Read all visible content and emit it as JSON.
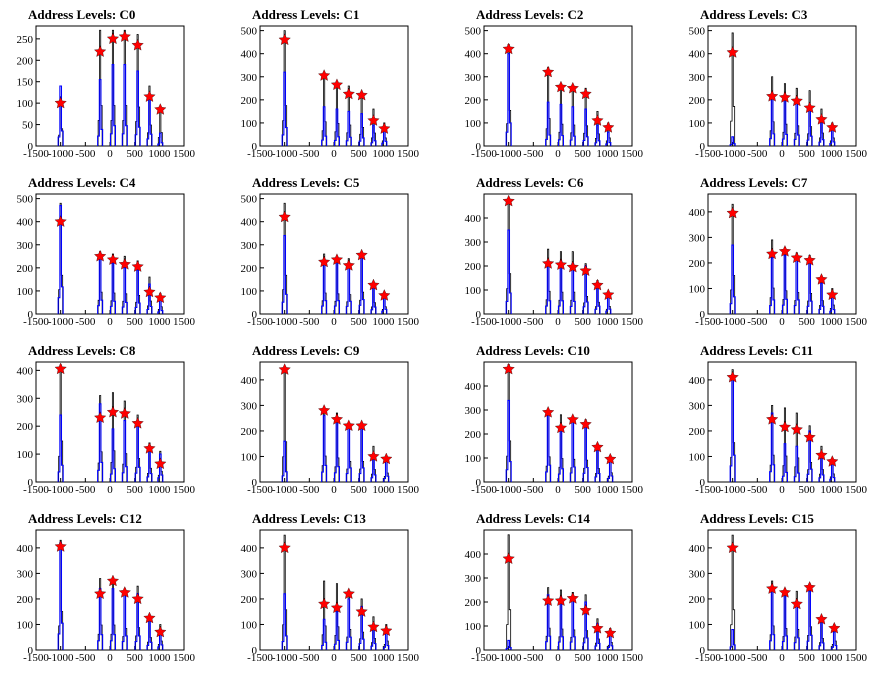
{
  "chart_data": [
    {
      "title": "Address Levels: C0",
      "type": "bar",
      "xlim": [
        -1500,
        1500
      ],
      "ylim": [
        0,
        280
      ],
      "xticks": [
        -1500,
        -1000,
        -500,
        0,
        500,
        1000,
        1500
      ],
      "xtick_labels": [
        "-1500",
        "-1000",
        "-500",
        "0",
        "500",
        "1000",
        "1500"
      ],
      "yticks": [
        0,
        50,
        100,
        150,
        200,
        250
      ],
      "ytick_labels": [
        "0",
        "50",
        "100",
        "150",
        "200",
        "250"
      ],
      "levels": [
        -1000,
        -200,
        60,
        300,
        560,
        800,
        1020
      ],
      "black_peaks": [
        115,
        270,
        270,
        270,
        260,
        140,
        90
      ],
      "blue_peaks": [
        140,
        155,
        190,
        190,
        175,
        110,
        30
      ],
      "star_values": [
        100,
        220,
        250,
        255,
        235,
        115,
        85
      ]
    },
    {
      "title": "Address Levels: C1",
      "type": "bar",
      "xlim": [
        -1500,
        1500
      ],
      "ylim": [
        0,
        520
      ],
      "xticks": [
        -1500,
        -1000,
        -500,
        0,
        500,
        1000,
        1500
      ],
      "xtick_labels": [
        "-1500",
        "-1000",
        "-500",
        "0",
        "500",
        "1000",
        "1500"
      ],
      "yticks": [
        0,
        100,
        200,
        300,
        400,
        500
      ],
      "ytick_labels": [
        "0",
        "100",
        "200",
        "300",
        "400",
        "500"
      ],
      "levels": [
        -1000,
        -200,
        60,
        300,
        560,
        800,
        1020
      ],
      "black_peaks": [
        500,
        300,
        280,
        260,
        230,
        160,
        100
      ],
      "blue_peaks": [
        320,
        170,
        160,
        150,
        140,
        90,
        80
      ],
      "star_values": [
        460,
        305,
        265,
        225,
        220,
        110,
        75
      ]
    },
    {
      "title": "Address Levels: C2",
      "type": "bar",
      "xlim": [
        -1500,
        1500
      ],
      "ylim": [
        0,
        520
      ],
      "xticks": [
        -1500,
        -1000,
        -500,
        0,
        500,
        1000,
        1500
      ],
      "xtick_labels": [
        "-1500",
        "-1000",
        "-500",
        "0",
        "500",
        "1000",
        "1500"
      ],
      "yticks": [
        0,
        100,
        200,
        300,
        400,
        500
      ],
      "ytick_labels": [
        "0",
        "100",
        "200",
        "300",
        "400",
        "500"
      ],
      "levels": [
        -1000,
        -200,
        60,
        300,
        560,
        800,
        1020
      ],
      "black_peaks": [
        440,
        340,
        270,
        260,
        250,
        150,
        100
      ],
      "blue_peaks": [
        400,
        190,
        180,
        170,
        160,
        90,
        60
      ],
      "star_values": [
        420,
        320,
        255,
        250,
        225,
        110,
        80
      ]
    },
    {
      "title": "Address Levels: C3",
      "type": "bar",
      "xlim": [
        -1500,
        1500
      ],
      "ylim": [
        0,
        520
      ],
      "xticks": [
        -1500,
        -1000,
        -500,
        0,
        500,
        1000,
        1500
      ],
      "xtick_labels": [
        "-1500",
        "-1000",
        "-500",
        "0",
        "500",
        "1000",
        "1500"
      ],
      "yticks": [
        0,
        100,
        200,
        300,
        400,
        500
      ],
      "ytick_labels": [
        "0",
        "100",
        "200",
        "300",
        "400",
        "500"
      ],
      "levels": [
        -1000,
        -200,
        60,
        300,
        560,
        800,
        1020
      ],
      "black_peaks": [
        490,
        300,
        270,
        250,
        240,
        160,
        100
      ],
      "blue_peaks": [
        40,
        210,
        200,
        190,
        170,
        110,
        70
      ],
      "star_values": [
        405,
        215,
        210,
        195,
        165,
        115,
        80
      ]
    },
    {
      "title": "Address Levels: C4",
      "type": "bar",
      "xlim": [
        -1500,
        1500
      ],
      "ylim": [
        0,
        520
      ],
      "xticks": [
        -1500,
        -1000,
        -500,
        0,
        500,
        1000,
        1500
      ],
      "xtick_labels": [
        "-1500",
        "-1000",
        "-500",
        "0",
        "500",
        "1000",
        "1500"
      ],
      "yticks": [
        0,
        100,
        200,
        300,
        400,
        500
      ],
      "ytick_labels": [
        "0",
        "100",
        "200",
        "300",
        "400",
        "500"
      ],
      "levels": [
        -1000,
        -200,
        60,
        300,
        560,
        800,
        1020
      ],
      "black_peaks": [
        480,
        270,
        260,
        250,
        230,
        160,
        90
      ],
      "blue_peaks": [
        470,
        240,
        220,
        200,
        190,
        130,
        60
      ],
      "star_values": [
        400,
        250,
        235,
        215,
        205,
        95,
        70
      ]
    },
    {
      "title": "Address Levels: C5",
      "type": "bar",
      "xlim": [
        -1500,
        1500
      ],
      "ylim": [
        0,
        520
      ],
      "xticks": [
        -1500,
        -1000,
        -500,
        0,
        500,
        1000,
        1500
      ],
      "xtick_labels": [
        "-1500",
        "-1000",
        "-500",
        "0",
        "500",
        "1000",
        "1500"
      ],
      "yticks": [
        0,
        100,
        200,
        300,
        400,
        500
      ],
      "ytick_labels": [
        "0",
        "100",
        "200",
        "300",
        "400",
        "500"
      ],
      "levels": [
        -1000,
        -200,
        60,
        300,
        560,
        800,
        1020
      ],
      "black_peaks": [
        480,
        260,
        250,
        240,
        270,
        140,
        90
      ],
      "blue_peaks": [
        340,
        230,
        230,
        220,
        250,
        120,
        80
      ],
      "star_values": [
        420,
        225,
        235,
        210,
        255,
        125,
        80
      ]
    },
    {
      "title": "Address Levels: C6",
      "type": "bar",
      "xlim": [
        -1500,
        1500
      ],
      "ylim": [
        0,
        500
      ],
      "xticks": [
        -1500,
        -1000,
        -500,
        0,
        500,
        1000,
        1500
      ],
      "xtick_labels": [
        "-1500",
        "-1000",
        "-500",
        "0",
        "500",
        "1000",
        "1500"
      ],
      "yticks": [
        0,
        100,
        200,
        300,
        400
      ],
      "ytick_labels": [
        "0",
        "100",
        "200",
        "300",
        "400"
      ],
      "levels": [
        -1000,
        -200,
        60,
        300,
        560,
        800,
        1020
      ],
      "black_peaks": [
        480,
        270,
        260,
        260,
        210,
        140,
        90
      ],
      "blue_peaks": [
        350,
        220,
        220,
        210,
        200,
        130,
        80
      ],
      "star_values": [
        470,
        210,
        205,
        195,
        180,
        120,
        80
      ]
    },
    {
      "title": "Address Levels: C7",
      "type": "bar",
      "xlim": [
        -1500,
        1500
      ],
      "ylim": [
        0,
        470
      ],
      "xticks": [
        -1500,
        -1000,
        -500,
        0,
        500,
        1000,
        1500
      ],
      "xtick_labels": [
        "-1500",
        "-1000",
        "-500",
        "0",
        "500",
        "1000",
        "1500"
      ],
      "yticks": [
        0,
        100,
        200,
        300,
        400
      ],
      "ytick_labels": [
        "0",
        "100",
        "200",
        "300",
        "400"
      ],
      "levels": [
        -1000,
        -200,
        60,
        300,
        560,
        800,
        1020
      ],
      "black_peaks": [
        430,
        290,
        260,
        240,
        230,
        150,
        100
      ],
      "blue_peaks": [
        270,
        220,
        230,
        220,
        200,
        120,
        70
      ],
      "star_values": [
        395,
        235,
        245,
        220,
        210,
        135,
        75
      ]
    },
    {
      "title": "Address Levels: C8",
      "type": "bar",
      "xlim": [
        -1500,
        1500
      ],
      "ylim": [
        0,
        430
      ],
      "xticks": [
        -1500,
        -1000,
        -500,
        0,
        500,
        1000,
        1500
      ],
      "xtick_labels": [
        "-1500",
        "-1000",
        "-500",
        "0",
        "500",
        "1000",
        "1500"
      ],
      "yticks": [
        0,
        100,
        200,
        300,
        400
      ],
      "ytick_labels": [
        "0",
        "100",
        "200",
        "300",
        "400"
      ],
      "levels": [
        -1000,
        -200,
        60,
        300,
        560,
        800,
        1020
      ],
      "black_peaks": [
        420,
        310,
        320,
        290,
        240,
        140,
        110
      ],
      "blue_peaks": [
        240,
        280,
        190,
        220,
        210,
        120,
        100
      ],
      "star_values": [
        405,
        230,
        250,
        245,
        210,
        120,
        65
      ]
    },
    {
      "title": "Address Levels: C9",
      "type": "bar",
      "xlim": [
        -1500,
        1500
      ],
      "ylim": [
        0,
        470
      ],
      "xticks": [
        -1500,
        -1000,
        -500,
        0,
        500,
        1000,
        1500
      ],
      "xtick_labels": [
        "-1500",
        "-1000",
        "-500",
        "0",
        "500",
        "1000",
        "1500"
      ],
      "yticks": [
        0,
        100,
        200,
        300,
        400
      ],
      "ytick_labels": [
        "0",
        "100",
        "200",
        "300",
        "400"
      ],
      "levels": [
        -1000,
        -200,
        60,
        300,
        560,
        800,
        1060
      ],
      "black_peaks": [
        450,
        290,
        270,
        230,
        230,
        140,
        100
      ],
      "blue_peaks": [
        160,
        260,
        240,
        220,
        220,
        110,
        90
      ],
      "star_values": [
        440,
        280,
        245,
        220,
        220,
        100,
        90
      ]
    },
    {
      "title": "Address Levels: C10",
      "type": "bar",
      "xlim": [
        -1500,
        1500
      ],
      "ylim": [
        0,
        500
      ],
      "xticks": [
        -1500,
        -1000,
        -500,
        0,
        500,
        1000,
        1500
      ],
      "xtick_labels": [
        "-1500",
        "-1000",
        "-500",
        "0",
        "500",
        "1000",
        "1500"
      ],
      "yticks": [
        0,
        100,
        200,
        300,
        400
      ],
      "ytick_labels": [
        "0",
        "100",
        "200",
        "300",
        "400"
      ],
      "levels": [
        -1000,
        -200,
        60,
        300,
        560,
        800,
        1060
      ],
      "black_peaks": [
        490,
        300,
        280,
        270,
        260,
        160,
        110
      ],
      "blue_peaks": [
        340,
        280,
        220,
        250,
        240,
        140,
        100
      ],
      "star_values": [
        470,
        290,
        225,
        260,
        240,
        145,
        95
      ]
    },
    {
      "title": "Address Levels: C11",
      "type": "bar",
      "xlim": [
        -1500,
        1500
      ],
      "ylim": [
        0,
        470
      ],
      "xticks": [
        -1500,
        -1000,
        -500,
        0,
        500,
        1000,
        1500
      ],
      "xtick_labels": [
        "-1500",
        "-1000",
        "-500",
        "0",
        "500",
        "1000",
        "1500"
      ],
      "yticks": [
        0,
        100,
        200,
        300,
        400
      ],
      "ytick_labels": [
        "0",
        "100",
        "200",
        "300",
        "400"
      ],
      "levels": [
        -1000,
        -200,
        60,
        300,
        560,
        800,
        1020
      ],
      "black_peaks": [
        440,
        300,
        290,
        270,
        220,
        140,
        90
      ],
      "blue_peaks": [
        420,
        270,
        150,
        140,
        200,
        110,
        70
      ],
      "star_values": [
        410,
        245,
        215,
        205,
        175,
        105,
        80
      ]
    },
    {
      "title": "Address Levels: C12",
      "type": "bar",
      "xlim": [
        -1500,
        1500
      ],
      "ylim": [
        0,
        470
      ],
      "xticks": [
        -1500,
        -1000,
        -500,
        0,
        500,
        1000,
        1500
      ],
      "xtick_labels": [
        "-1500",
        "-1000",
        "-500",
        "0",
        "500",
        "1000",
        "1500"
      ],
      "yticks": [
        0,
        100,
        200,
        300,
        400
      ],
      "ytick_labels": [
        "0",
        "100",
        "200",
        "300",
        "400"
      ],
      "levels": [
        -1000,
        -200,
        60,
        300,
        560,
        800,
        1020
      ],
      "black_peaks": [
        430,
        280,
        280,
        240,
        250,
        140,
        100
      ],
      "blue_peaks": [
        420,
        240,
        240,
        220,
        220,
        120,
        80
      ],
      "star_values": [
        405,
        220,
        270,
        225,
        200,
        125,
        70
      ]
    },
    {
      "title": "Address Levels: C13",
      "type": "bar",
      "xlim": [
        -1500,
        1500
      ],
      "ylim": [
        0,
        470
      ],
      "xticks": [
        -1500,
        -1000,
        -500,
        0,
        500,
        1000,
        1500
      ],
      "xtick_labels": [
        "-1500",
        "-1000",
        "-500",
        "0",
        "500",
        "1000",
        "1500"
      ],
      "yticks": [
        0,
        100,
        200,
        300,
        400
      ],
      "ytick_labels": [
        "0",
        "100",
        "200",
        "300",
        "400"
      ],
      "levels": [
        -1000,
        -200,
        60,
        300,
        560,
        800,
        1060
      ],
      "black_peaks": [
        450,
        270,
        260,
        230,
        200,
        130,
        100
      ],
      "blue_peaks": [
        220,
        120,
        150,
        200,
        170,
        100,
        70
      ],
      "star_values": [
        400,
        180,
        165,
        220,
        150,
        90,
        75
      ]
    },
    {
      "title": "Address Levels: C14",
      "type": "bar",
      "xlim": [
        -1500,
        1500
      ],
      "ylim": [
        0,
        500
      ],
      "xticks": [
        -1500,
        -1000,
        -500,
        0,
        500,
        1000,
        1500
      ],
      "xtick_labels": [
        "-1500",
        "-1000",
        "-500",
        "0",
        "500",
        "1000",
        "1500"
      ],
      "yticks": [
        0,
        100,
        200,
        300,
        400
      ],
      "ytick_labels": [
        "0",
        "100",
        "200",
        "300",
        "400"
      ],
      "levels": [
        -1000,
        -200,
        60,
        300,
        560,
        800,
        1060
      ],
      "black_peaks": [
        480,
        260,
        250,
        240,
        230,
        130,
        90
      ],
      "blue_peaks": [
        40,
        230,
        220,
        220,
        200,
        110,
        70
      ],
      "star_values": [
        380,
        205,
        205,
        215,
        165,
        90,
        70
      ]
    },
    {
      "title": "Address Levels: C15",
      "type": "bar",
      "xlim": [
        -1500,
        1500
      ],
      "ylim": [
        0,
        470
      ],
      "xticks": [
        -1500,
        -1000,
        -500,
        0,
        500,
        1000,
        1500
      ],
      "xtick_labels": [
        "-1500",
        "-1000",
        "-500",
        "0",
        "500",
        "1000",
        "1500"
      ],
      "yticks": [
        0,
        100,
        200,
        300,
        400
      ],
      "ytick_labels": [
        "0",
        "100",
        "200",
        "300",
        "400"
      ],
      "levels": [
        -1000,
        -200,
        60,
        300,
        560,
        800,
        1060
      ],
      "black_peaks": [
        450,
        270,
        240,
        230,
        260,
        130,
        100
      ],
      "blue_peaks": [
        80,
        240,
        220,
        190,
        230,
        110,
        70
      ],
      "star_values": [
        400,
        240,
        225,
        180,
        245,
        120,
        85
      ]
    }
  ],
  "colors": {
    "black_histogram": "#000000",
    "blue_histogram": "#0000ff",
    "marker_fill": "#ff0000",
    "marker_edge": "#000000",
    "axis": "#000000",
    "background": "#ffffff"
  }
}
